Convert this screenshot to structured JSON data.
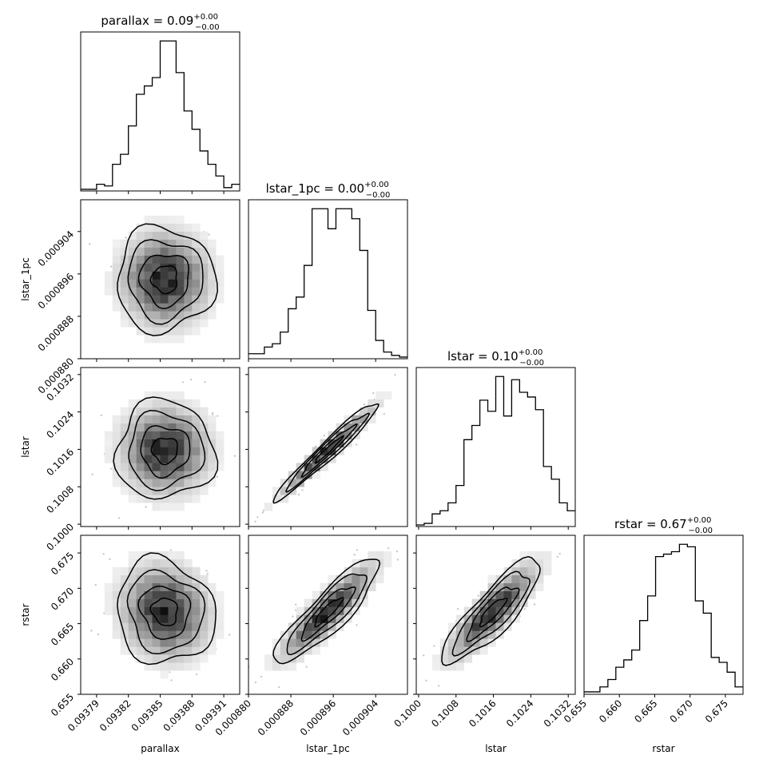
{
  "chart_data": {
    "type": "corner",
    "parameters": [
      {
        "name": "parallax",
        "label": "parallax",
        "title_prefix": "parallax = ",
        "title_value": "0.09",
        "title_plus": "+0.00",
        "title_minus": "−0.00",
        "range": [
          0.093775,
          0.093925
        ],
        "ticks": [
          0.09379,
          0.09382,
          0.09385,
          0.09388,
          0.09391
        ],
        "tick_labels": [
          "0.09379",
          "0.09382",
          "0.09385",
          "0.09388",
          "0.09391"
        ]
      },
      {
        "name": "lstar_1pc",
        "label": "lstar_1pc",
        "title_prefix": "lstar_1pc = ",
        "title_value": "0.00",
        "title_plus": "+0.00",
        "title_minus": "−0.00",
        "range": [
          0.00088,
          0.00091
        ],
        "ticks": [
          0.00088,
          0.000888,
          0.000896,
          0.000904
        ],
        "tick_labels": [
          "0.000880",
          "0.000888",
          "0.000896",
          "0.000904"
        ]
      },
      {
        "name": "lstar",
        "label": "lstar",
        "title_prefix": "lstar = ",
        "title_value": "0.10",
        "title_plus": "+0.00",
        "title_minus": "−0.00",
        "range": [
          0.09995,
          0.10335
        ],
        "ticks": [
          0.1,
          0.1008,
          0.1016,
          0.1024,
          0.1032
        ],
        "tick_labels": [
          "0.1000",
          "0.1008",
          "0.1016",
          "0.1024",
          "0.1032"
        ]
      },
      {
        "name": "rstar",
        "label": "rstar",
        "title_prefix": "rstar = ",
        "title_value": "0.67",
        "title_plus": "+0.00",
        "title_minus": "−0.00",
        "range": [
          0.655,
          0.6775
        ],
        "ticks": [
          0.655,
          0.66,
          0.665,
          0.67,
          0.675
        ],
        "tick_labels": [
          "0.655",
          "0.660",
          "0.665",
          "0.670",
          "0.675"
        ]
      }
    ],
    "histograms": [
      [
        1,
        1,
        4,
        3,
        16,
        22,
        39,
        58,
        63,
        68,
        90,
        90,
        71,
        48,
        37,
        24,
        16,
        9,
        2,
        4
      ],
      [
        3,
        3,
        7,
        9,
        16,
        30,
        37,
        56,
        90,
        90,
        78,
        90,
        90,
        84,
        65,
        29,
        11,
        4,
        2,
        1
      ],
      [
        1,
        2,
        8,
        10,
        15,
        26,
        55,
        64,
        80,
        73,
        95,
        70,
        93,
        85,
        82,
        74,
        38,
        30,
        15,
        10
      ],
      [
        1,
        1,
        3,
        6,
        11,
        14,
        18,
        30,
        40,
        56,
        57,
        58,
        61,
        60,
        38,
        33,
        15,
        13,
        9,
        3
      ]
    ],
    "correlations": [
      [
        1.0,
        0.0,
        0.0,
        -0.1
      ],
      [
        0.0,
        1.0,
        0.97,
        0.88
      ],
      [
        0.0,
        0.97,
        1.0,
        0.85
      ],
      [
        -0.1,
        0.88,
        0.85,
        1.0
      ]
    ]
  }
}
